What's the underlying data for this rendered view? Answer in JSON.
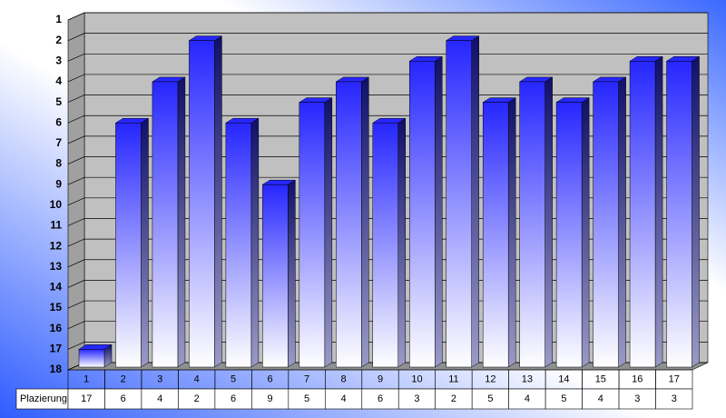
{
  "chart_data": {
    "type": "bar3d",
    "categories": [
      "1",
      "2",
      "3",
      "4",
      "5",
      "6",
      "7",
      "8",
      "9",
      "10",
      "11",
      "12",
      "13",
      "14",
      "15",
      "16",
      "17"
    ],
    "series": [
      {
        "name": "Plazierung",
        "color": "#2626ff",
        "values": [
          17,
          6,
          4,
          2,
          6,
          9,
          5,
          4,
          6,
          3,
          2,
          5,
          4,
          5,
          4,
          3,
          3
        ]
      }
    ],
    "ylim": [
      18,
      1
    ],
    "yticks": [
      1,
      2,
      3,
      4,
      5,
      6,
      7,
      8,
      9,
      10,
      11,
      12,
      13,
      14,
      15,
      16,
      17,
      18
    ],
    "grid": true
  }
}
